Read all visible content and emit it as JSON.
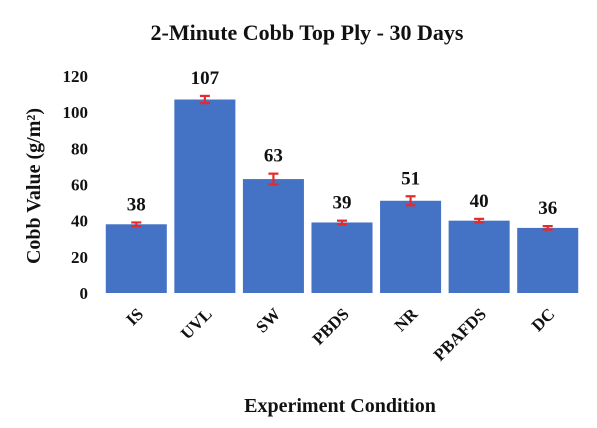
{
  "chart_data": {
    "type": "bar",
    "title": "2-Minute Cobb Top Ply - 30 Days",
    "xlabel": "Experiment Condition",
    "ylabel": "Cobb Value (g/m²)",
    "categories": [
      "IS",
      "UVL",
      "SW",
      "PBDS",
      "NR",
      "PBAFDS",
      "DC"
    ],
    "values": [
      38,
      107,
      63,
      39,
      51,
      40,
      36
    ],
    "data_labels": [
      "38",
      "107",
      "63",
      "39",
      "51",
      "40",
      "36"
    ],
    "error": [
      1,
      2,
      3,
      1,
      2.5,
      1,
      1
    ],
    "ylim": [
      0,
      120
    ],
    "yticks": [
      0,
      20,
      40,
      60,
      80,
      100,
      120
    ],
    "grid": false,
    "legend": "none",
    "bar_color": "#4472C4",
    "error_color": "#E8292B"
  }
}
